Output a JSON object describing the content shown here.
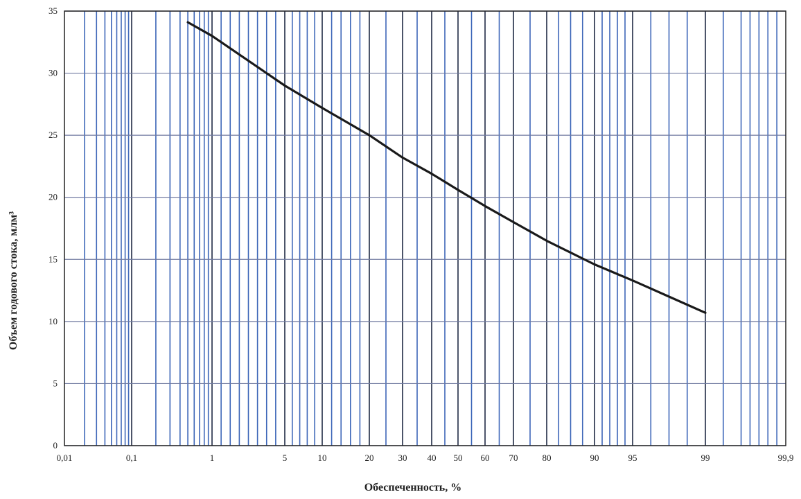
{
  "chart_data": {
    "type": "line",
    "title": "",
    "xlabel": "Обеспеченность, %",
    "ylabel": "Объем годового стока, млм³",
    "x_scale": "probability",
    "xlim": [
      0.01,
      99.9
    ],
    "ylim": [
      0,
      35
    ],
    "y_ticks": [
      0,
      5,
      10,
      15,
      20,
      25,
      30,
      35
    ],
    "x_tick_labels": [
      "0,01",
      "0,1",
      "1",
      "5",
      "10",
      "20",
      "30",
      "40",
      "50",
      "60",
      "70",
      "80",
      "90",
      "95",
      "99",
      "99,9"
    ],
    "grid": true,
    "colors": {
      "minor_grid": "#3d66b8",
      "major_grid": "#1f2a44",
      "horizontal_grid": "#707aa0",
      "curve": "#1a1a1a"
    },
    "series": [
      {
        "x": [
          0.5,
          1,
          5,
          10,
          20,
          30,
          40,
          50,
          60,
          70,
          80,
          90,
          95,
          97,
          99
        ],
        "y": [
          34.1,
          33.0,
          29.0,
          27.2,
          25.0,
          23.2,
          21.9,
          20.6,
          19.3,
          18.0,
          16.5,
          14.6,
          13.3,
          12.0,
          10.7
        ]
      }
    ]
  }
}
